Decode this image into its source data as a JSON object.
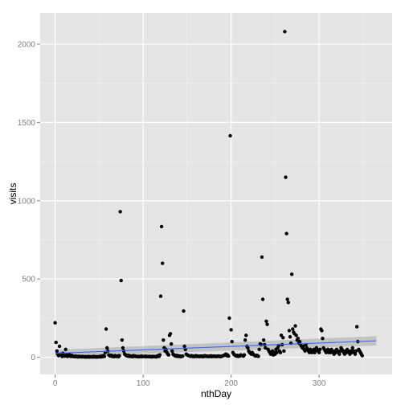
{
  "chart_data": {
    "type": "scatter",
    "xlabel": "nthDay",
    "ylabel": "visits",
    "xlim": [
      -17,
      383
    ],
    "ylim": [
      -110,
      2200
    ],
    "x_ticks": [
      0,
      100,
      200,
      300
    ],
    "y_ticks": [
      0,
      500,
      1000,
      1500,
      2000
    ],
    "grid": true,
    "colors": {
      "panel_background": "#e5e5e5",
      "grid_major": "#ffffff",
      "grid_minor": "#f2f2f2",
      "points": "#000000",
      "smooth_line": "#3366ff",
      "confidence_band": "#999999"
    },
    "smooth": {
      "x": [
        0,
        365
      ],
      "y": [
        25,
        105
      ],
      "band_half_width_start": 22,
      "band_half_width_end": 30
    },
    "points": [
      [
        0,
        220
      ],
      [
        1,
        95
      ],
      [
        2,
        40
      ],
      [
        3,
        20
      ],
      [
        4,
        10
      ],
      [
        5,
        70
      ],
      [
        6,
        20
      ],
      [
        7,
        15
      ],
      [
        8,
        5
      ],
      [
        9,
        25
      ],
      [
        10,
        10
      ],
      [
        11,
        8
      ],
      [
        12,
        50
      ],
      [
        13,
        15
      ],
      [
        14,
        5
      ],
      [
        15,
        10
      ],
      [
        16,
        20
      ],
      [
        17,
        8
      ],
      [
        18,
        5
      ],
      [
        19,
        12
      ],
      [
        20,
        6
      ],
      [
        21,
        5
      ],
      [
        22,
        4
      ],
      [
        23,
        8
      ],
      [
        24,
        3
      ],
      [
        25,
        5
      ],
      [
        26,
        2
      ],
      [
        27,
        6
      ],
      [
        28,
        3
      ],
      [
        29,
        4
      ],
      [
        30,
        2
      ],
      [
        31,
        5
      ],
      [
        32,
        3
      ],
      [
        33,
        2
      ],
      [
        34,
        4
      ],
      [
        35,
        1
      ],
      [
        36,
        3
      ],
      [
        37,
        2
      ],
      [
        38,
        5
      ],
      [
        39,
        1
      ],
      [
        40,
        3
      ],
      [
        41,
        2
      ],
      [
        42,
        4
      ],
      [
        43,
        1
      ],
      [
        44,
        6
      ],
      [
        45,
        2
      ],
      [
        46,
        3
      ],
      [
        47,
        1
      ],
      [
        48,
        4
      ],
      [
        49,
        2
      ],
      [
        50,
        3
      ],
      [
        51,
        5
      ],
      [
        52,
        2
      ],
      [
        53,
        8
      ],
      [
        54,
        4
      ],
      [
        55,
        10
      ],
      [
        56,
        6
      ],
      [
        57,
        30
      ],
      [
        58,
        180
      ],
      [
        59,
        60
      ],
      [
        60,
        40
      ],
      [
        61,
        15
      ],
      [
        62,
        10
      ],
      [
        63,
        8
      ],
      [
        64,
        12
      ],
      [
        65,
        5
      ],
      [
        66,
        8
      ],
      [
        67,
        4
      ],
      [
        68,
        10
      ],
      [
        69,
        6
      ],
      [
        70,
        5
      ],
      [
        71,
        8
      ],
      [
        72,
        3
      ],
      [
        73,
        10
      ],
      [
        74,
        930
      ],
      [
        75,
        490
      ],
      [
        76,
        110
      ],
      [
        77,
        60
      ],
      [
        78,
        40
      ],
      [
        79,
        20
      ],
      [
        80,
        15
      ],
      [
        81,
        10
      ],
      [
        82,
        8
      ],
      [
        83,
        12
      ],
      [
        84,
        6
      ],
      [
        85,
        9
      ],
      [
        86,
        5
      ],
      [
        87,
        7
      ],
      [
        88,
        4
      ],
      [
        89,
        10
      ],
      [
        90,
        6
      ],
      [
        91,
        8
      ],
      [
        92,
        5
      ],
      [
        93,
        4
      ],
      [
        94,
        6
      ],
      [
        95,
        3
      ],
      [
        96,
        5
      ],
      [
        97,
        4
      ],
      [
        98,
        8
      ],
      [
        99,
        3
      ],
      [
        100,
        6
      ],
      [
        101,
        5
      ],
      [
        102,
        4
      ],
      [
        103,
        7
      ],
      [
        104,
        3
      ],
      [
        105,
        5
      ],
      [
        106,
        4
      ],
      [
        107,
        6
      ],
      [
        108,
        3
      ],
      [
        109,
        5
      ],
      [
        110,
        2
      ],
      [
        111,
        6
      ],
      [
        112,
        4
      ],
      [
        113,
        3
      ],
      [
        114,
        5
      ],
      [
        115,
        2
      ],
      [
        116,
        8
      ],
      [
        117,
        10
      ],
      [
        118,
        5
      ],
      [
        119,
        15
      ],
      [
        120,
        390
      ],
      [
        121,
        835
      ],
      [
        122,
        600
      ],
      [
        123,
        110
      ],
      [
        124,
        60
      ],
      [
        125,
        40
      ],
      [
        126,
        50
      ],
      [
        127,
        30
      ],
      [
        128,
        20
      ],
      [
        129,
        15
      ],
      [
        130,
        140
      ],
      [
        131,
        150
      ],
      [
        132,
        85
      ],
      [
        133,
        40
      ],
      [
        134,
        20
      ],
      [
        135,
        15
      ],
      [
        136,
        10
      ],
      [
        137,
        8
      ],
      [
        138,
        12
      ],
      [
        139,
        6
      ],
      [
        140,
        10
      ],
      [
        141,
        5
      ],
      [
        142,
        8
      ],
      [
        143,
        4
      ],
      [
        144,
        6
      ],
      [
        145,
        8
      ],
      [
        146,
        295
      ],
      [
        147,
        70
      ],
      [
        148,
        50
      ],
      [
        149,
        20
      ],
      [
        150,
        15
      ],
      [
        151,
        12
      ],
      [
        152,
        10
      ],
      [
        153,
        8
      ],
      [
        154,
        6
      ],
      [
        155,
        10
      ],
      [
        156,
        5
      ],
      [
        157,
        8
      ],
      [
        158,
        4
      ],
      [
        159,
        6
      ],
      [
        160,
        10
      ],
      [
        161,
        5
      ],
      [
        162,
        8
      ],
      [
        163,
        6
      ],
      [
        164,
        4
      ],
      [
        165,
        7
      ],
      [
        166,
        5
      ],
      [
        167,
        8
      ],
      [
        168,
        3
      ],
      [
        169,
        6
      ],
      [
        170,
        10
      ],
      [
        171,
        5
      ],
      [
        172,
        8
      ],
      [
        173,
        6
      ],
      [
        174,
        4
      ],
      [
        175,
        7
      ],
      [
        176,
        5
      ],
      [
        177,
        9
      ],
      [
        178,
        4
      ],
      [
        179,
        6
      ],
      [
        180,
        8
      ],
      [
        181,
        5
      ],
      [
        182,
        7
      ],
      [
        183,
        4
      ],
      [
        184,
        6
      ],
      [
        185,
        8
      ],
      [
        186,
        5
      ],
      [
        187,
        7
      ],
      [
        188,
        4
      ],
      [
        189,
        6
      ],
      [
        190,
        8
      ],
      [
        191,
        10
      ],
      [
        192,
        12
      ],
      [
        193,
        15
      ],
      [
        194,
        20
      ],
      [
        195,
        10
      ],
      [
        196,
        15
      ],
      [
        197,
        8
      ],
      [
        198,
        250
      ],
      [
        199,
        1415
      ],
      [
        200,
        175
      ],
      [
        201,
        100
      ],
      [
        202,
        30
      ],
      [
        203,
        20
      ],
      [
        204,
        15
      ],
      [
        205,
        10
      ],
      [
        206,
        8
      ],
      [
        207,
        12
      ],
      [
        208,
        6
      ],
      [
        209,
        10
      ],
      [
        210,
        8
      ],
      [
        211,
        15
      ],
      [
        212,
        12
      ],
      [
        213,
        10
      ],
      [
        214,
        8
      ],
      [
        215,
        15
      ],
      [
        216,
        110
      ],
      [
        217,
        140
      ],
      [
        218,
        70
      ],
      [
        219,
        60
      ],
      [
        220,
        40
      ],
      [
        221,
        30
      ],
      [
        222,
        25
      ],
      [
        223,
        20
      ],
      [
        224,
        30
      ],
      [
        225,
        20
      ],
      [
        226,
        15
      ],
      [
        227,
        10
      ],
      [
        228,
        8
      ],
      [
        229,
        12
      ],
      [
        230,
        10
      ],
      [
        231,
        6
      ],
      [
        232,
        50
      ],
      [
        233,
        85
      ],
      [
        234,
        80
      ],
      [
        235,
        640
      ],
      [
        236,
        370
      ],
      [
        237,
        110
      ],
      [
        238,
        80
      ],
      [
        239,
        60
      ],
      [
        240,
        230
      ],
      [
        241,
        210
      ],
      [
        242,
        50
      ],
      [
        243,
        40
      ],
      [
        244,
        30
      ],
      [
        245,
        20
      ],
      [
        246,
        25
      ],
      [
        247,
        40
      ],
      [
        248,
        15
      ],
      [
        249,
        30
      ],
      [
        250,
        20
      ],
      [
        251,
        50
      ],
      [
        252,
        30
      ],
      [
        253,
        60
      ],
      [
        254,
        75
      ],
      [
        255,
        40
      ],
      [
        256,
        30
      ],
      [
        257,
        140
      ],
      [
        258,
        80
      ],
      [
        259,
        125
      ],
      [
        260,
        40
      ],
      [
        261,
        2080
      ],
      [
        262,
        1150
      ],
      [
        263,
        790
      ],
      [
        264,
        370
      ],
      [
        265,
        350
      ],
      [
        266,
        170
      ],
      [
        267,
        130
      ],
      [
        268,
        90
      ],
      [
        269,
        530
      ],
      [
        270,
        180
      ],
      [
        271,
        160
      ],
      [
        272,
        150
      ],
      [
        273,
        200
      ],
      [
        274,
        140
      ],
      [
        275,
        110
      ],
      [
        276,
        120
      ],
      [
        277,
        90
      ],
      [
        278,
        100
      ],
      [
        279,
        80
      ],
      [
        280,
        70
      ],
      [
        281,
        60
      ],
      [
        282,
        70
      ],
      [
        283,
        50
      ],
      [
        284,
        40
      ],
      [
        285,
        80
      ],
      [
        286,
        60
      ],
      [
        287,
        50
      ],
      [
        288,
        40
      ],
      [
        289,
        30
      ],
      [
        290,
        50
      ],
      [
        291,
        40
      ],
      [
        292,
        30
      ],
      [
        293,
        40
      ],
      [
        294,
        50
      ],
      [
        295,
        30
      ],
      [
        296,
        40
      ],
      [
        297,
        60
      ],
      [
        298,
        50
      ],
      [
        299,
        40
      ],
      [
        300,
        30
      ],
      [
        301,
        50
      ],
      [
        302,
        180
      ],
      [
        303,
        170
      ],
      [
        304,
        120
      ],
      [
        305,
        60
      ],
      [
        306,
        50
      ],
      [
        307,
        40
      ],
      [
        308,
        30
      ],
      [
        309,
        40
      ],
      [
        310,
        50
      ],
      [
        311,
        30
      ],
      [
        312,
        40
      ],
      [
        313,
        30
      ],
      [
        314,
        50
      ],
      [
        315,
        40
      ],
      [
        316,
        30
      ],
      [
        317,
        20
      ],
      [
        318,
        40
      ],
      [
        319,
        30
      ],
      [
        320,
        50
      ],
      [
        321,
        40
      ],
      [
        322,
        30
      ],
      [
        323,
        20
      ],
      [
        324,
        40
      ],
      [
        325,
        60
      ],
      [
        326,
        50
      ],
      [
        327,
        40
      ],
      [
        328,
        30
      ],
      [
        329,
        20
      ],
      [
        330,
        40
      ],
      [
        331,
        30
      ],
      [
        332,
        50
      ],
      [
        333,
        40
      ],
      [
        334,
        30
      ],
      [
        335,
        20
      ],
      [
        336,
        40
      ],
      [
        337,
        30
      ],
      [
        338,
        60
      ],
      [
        339,
        40
      ],
      [
        340,
        30
      ],
      [
        341,
        20
      ],
      [
        342,
        40
      ],
      [
        343,
        195
      ],
      [
        344,
        100
      ],
      [
        345,
        50
      ],
      [
        346,
        40
      ],
      [
        347,
        30
      ],
      [
        348,
        20
      ],
      [
        349,
        10
      ]
    ]
  }
}
